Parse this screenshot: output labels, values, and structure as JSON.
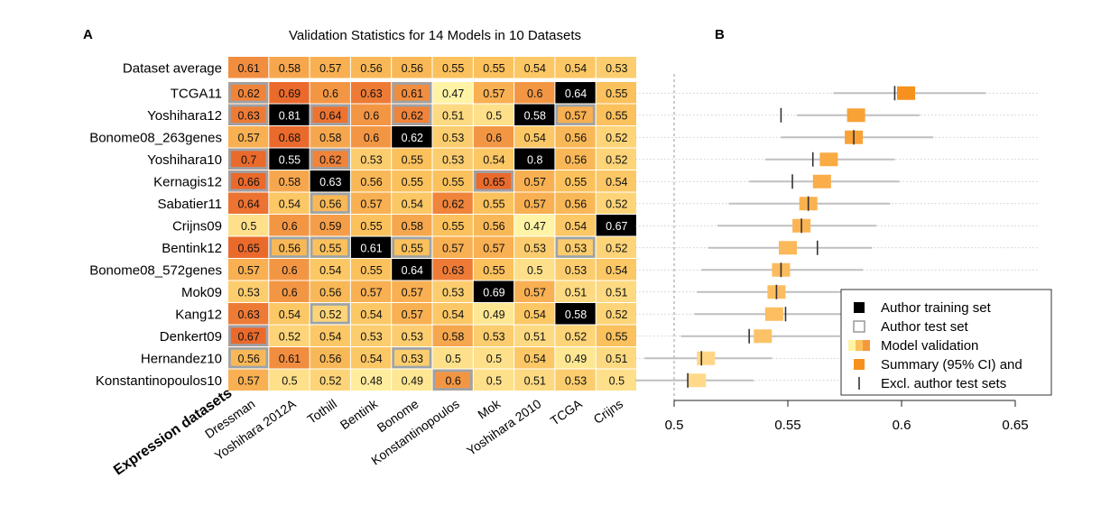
{
  "panel_a": {
    "letter": "A",
    "title": "Validation Statistics for 14 Models in 10 Datasets",
    "ylabel": "Expression datasets",
    "colors": {
      "cell_low": "#fff3a6",
      "cell_mid": "#fbc15c",
      "cell_high": "#ea6a2c",
      "training": "#000000",
      "test_outline": "#9aa3ab"
    }
  },
  "panel_b": {
    "letter": "B",
    "colors": {
      "box_light": "#ffd98a",
      "box_dark": "#f6911e",
      "ci_line": "#bfbfbf",
      "excl_tick": "#333333"
    }
  },
  "chart_data": [
    {
      "type": "heatmap",
      "title": "Validation Statistics for 14 Models in 10 Datasets",
      "ylabel": "Expression datasets",
      "columns": [
        "Dressman",
        "Yoshihara 2012A",
        "Tothill",
        "Bentink",
        "Bonome",
        "Konstantinopoulos",
        "Mok",
        "Yoshihara 2010",
        "TCGA",
        "Crijns"
      ],
      "average_row": {
        "label": "Dataset average",
        "values": [
          0.61,
          0.58,
          0.57,
          0.56,
          0.56,
          0.55,
          0.55,
          0.54,
          0.54,
          0.53
        ]
      },
      "rows": [
        {
          "label": "TCGA11",
          "values": [
            0.62,
            0.69,
            0.6,
            0.63,
            0.61,
            0.47,
            0.57,
            0.6,
            0.64,
            0.55
          ]
        },
        {
          "label": "Yoshihara12",
          "values": [
            0.63,
            0.81,
            0.64,
            0.6,
            0.62,
            0.51,
            0.5,
            0.58,
            0.57,
            0.55
          ]
        },
        {
          "label": "Bonome08_263genes",
          "values": [
            0.57,
            0.68,
            0.58,
            0.6,
            0.62,
            0.53,
            0.6,
            0.54,
            0.56,
            0.52
          ]
        },
        {
          "label": "Yoshihara10",
          "values": [
            0.7,
            0.55,
            0.62,
            0.53,
            0.55,
            0.53,
            0.54,
            0.8,
            0.56,
            0.52
          ]
        },
        {
          "label": "Kernagis12",
          "values": [
            0.66,
            0.58,
            0.63,
            0.56,
            0.55,
            0.55,
            0.65,
            0.57,
            0.55,
            0.54
          ]
        },
        {
          "label": "Sabatier11",
          "values": [
            0.64,
            0.54,
            0.56,
            0.57,
            0.54,
            0.62,
            0.55,
            0.57,
            0.56,
            0.52
          ]
        },
        {
          "label": "Crijns09",
          "values": [
            0.5,
            0.6,
            0.59,
            0.55,
            0.58,
            0.55,
            0.56,
            0.47,
            0.54,
            0.67
          ]
        },
        {
          "label": "Bentink12",
          "values": [
            0.65,
            0.56,
            0.55,
            0.61,
            0.55,
            0.57,
            0.57,
            0.53,
            0.53,
            0.52
          ]
        },
        {
          "label": "Bonome08_572genes",
          "values": [
            0.57,
            0.6,
            0.54,
            0.55,
            0.64,
            0.63,
            0.55,
            0.5,
            0.53,
            0.54
          ]
        },
        {
          "label": "Mok09",
          "values": [
            0.53,
            0.6,
            0.56,
            0.57,
            0.57,
            0.53,
            0.69,
            0.57,
            0.51,
            0.51
          ]
        },
        {
          "label": "Kang12",
          "values": [
            0.63,
            0.54,
            0.52,
            0.54,
            0.57,
            0.54,
            0.49,
            0.54,
            0.58,
            0.52
          ]
        },
        {
          "label": "Denkert09",
          "values": [
            0.67,
            0.52,
            0.54,
            0.53,
            0.53,
            0.58,
            0.53,
            0.51,
            0.52,
            0.55
          ]
        },
        {
          "label": "Hernandez10",
          "values": [
            0.56,
            0.61,
            0.56,
            0.54,
            0.53,
            0.5,
            0.5,
            0.54,
            0.49,
            0.51
          ]
        },
        {
          "label": "Konstantinopoulos10",
          "values": [
            0.57,
            0.5,
            0.52,
            0.48,
            0.49,
            0.6,
            0.5,
            0.51,
            0.53,
            0.5
          ]
        }
      ],
      "training_cells": [
        [
          0,
          8
        ],
        [
          1,
          1
        ],
        [
          1,
          7
        ],
        [
          2,
          4
        ],
        [
          3,
          1
        ],
        [
          3,
          7
        ],
        [
          4,
          2
        ],
        [
          6,
          9
        ],
        [
          7,
          3
        ],
        [
          8,
          4
        ],
        [
          9,
          6
        ],
        [
          10,
          8
        ]
      ],
      "test_cells": [
        [
          0,
          0
        ],
        [
          0,
          4
        ],
        [
          1,
          0
        ],
        [
          1,
          2
        ],
        [
          1,
          4
        ],
        [
          1,
          8
        ],
        [
          3,
          0
        ],
        [
          3,
          2
        ],
        [
          4,
          0
        ],
        [
          4,
          6
        ],
        [
          5,
          2
        ],
        [
          7,
          1
        ],
        [
          7,
          2
        ],
        [
          7,
          4
        ],
        [
          7,
          8
        ],
        [
          10,
          2
        ],
        [
          11,
          0
        ],
        [
          12,
          0
        ],
        [
          12,
          4
        ],
        [
          13,
          5
        ]
      ]
    },
    {
      "type": "forest",
      "xlim": [
        0.48,
        0.66
      ],
      "xticks": [
        0.5,
        0.55,
        0.6,
        0.65
      ],
      "reference_x": 0.5,
      "legend_placement": "bottom-right",
      "legend": [
        "Author training set",
        "Author test set",
        "Model validation",
        "Summary (95% CI) and",
        "Excl. author test sets"
      ],
      "rows": [
        {
          "estimate": 0.602,
          "ci_low": 0.57,
          "ci_high": 0.637,
          "excl": 0.597
        },
        {
          "estimate": 0.58,
          "ci_low": 0.554,
          "ci_high": 0.608,
          "excl": 0.547
        },
        {
          "estimate": 0.579,
          "ci_low": 0.547,
          "ci_high": 0.614,
          "excl": 0.579
        },
        {
          "estimate": 0.568,
          "ci_low": 0.54,
          "ci_high": 0.597,
          "excl": 0.561
        },
        {
          "estimate": 0.565,
          "ci_low": 0.533,
          "ci_high": 0.599,
          "excl": 0.552
        },
        {
          "estimate": 0.559,
          "ci_low": 0.524,
          "ci_high": 0.595,
          "excl": 0.559
        },
        {
          "estimate": 0.556,
          "ci_low": 0.519,
          "ci_high": 0.589,
          "excl": 0.556
        },
        {
          "estimate": 0.55,
          "ci_low": 0.515,
          "ci_high": 0.587,
          "excl": 0.563
        },
        {
          "estimate": 0.547,
          "ci_low": 0.512,
          "ci_high": 0.583,
          "excl": 0.547
        },
        {
          "estimate": 0.545,
          "ci_low": 0.51,
          "ci_high": 0.578,
          "excl": 0.545
        },
        {
          "estimate": 0.544,
          "ci_low": 0.509,
          "ci_high": 0.574,
          "excl": 0.549
        },
        {
          "estimate": 0.539,
          "ci_low": 0.503,
          "ci_high": 0.573,
          "excl": 0.533
        },
        {
          "estimate": 0.514,
          "ci_low": 0.487,
          "ci_high": 0.543,
          "excl": 0.512
        },
        {
          "estimate": 0.51,
          "ci_low": 0.483,
          "ci_high": 0.535,
          "excl": 0.506
        }
      ]
    }
  ]
}
